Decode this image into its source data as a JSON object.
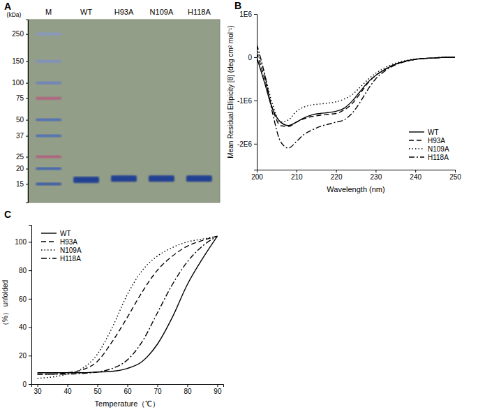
{
  "chart_data": [
    {
      "type": "gel",
      "title": "A",
      "y_label": "(kDa)",
      "categories": [
        "M",
        "WT",
        "H93A",
        "N109A",
        "H118A"
      ],
      "log": "y",
      "ylim": [
        10.6,
        328
      ],
      "yticks": [
        250,
        150,
        100,
        75,
        50,
        37,
        25,
        20,
        15
      ],
      "values": [
        [
          250,
          150,
          100,
          75,
          50,
          37,
          25,
          20,
          15
        ],
        [
          16.2
        ],
        [
          16.6
        ],
        [
          16.6
        ],
        [
          16.6
        ]
      ],
      "colors": [
        [
          "#8796c0",
          "#7f8fbf",
          "#6f82bd",
          "#b0607e",
          "#4f6fb5",
          "#4f6fb5",
          "#b0607e",
          "#4466b0",
          "#3a5aa8"
        ],
        [
          "#243f92"
        ],
        [
          "#243f92"
        ],
        [
          "#243f92"
        ],
        [
          "#243f92"
        ]
      ]
    },
    {
      "type": "line",
      "title": "B",
      "x_label": "Wavelength (nm)",
      "y_label": "Mean Residual Ellipicity [θ] (deg cm² mol⁻¹)",
      "x": [
        200,
        202,
        204,
        206,
        208,
        210,
        212,
        214,
        216,
        218,
        220,
        222,
        224,
        226,
        228,
        230,
        232,
        234,
        236,
        238,
        240,
        242,
        244,
        246,
        248,
        250
      ],
      "xlim": [
        200,
        250
      ],
      "xticks": [
        200,
        210,
        220,
        230,
        240,
        250
      ],
      "ylim": [
        -2600000,
        1000000
      ],
      "yticks": [
        {
          "value": 1000000,
          "label": "1E6"
        },
        0,
        {
          "value": -1000000,
          "label": "-1E6"
        },
        {
          "value": -2000000,
          "label": "-2E6"
        }
      ],
      "legend": "lower right",
      "series": [
        {
          "name": "WT",
          "color": "#000000",
          "line_style": "solid",
          "values": [
            0,
            -600000,
            -1200000,
            -1500000,
            -1580000,
            -1500000,
            -1400000,
            -1330000,
            -1300000,
            -1280000,
            -1250000,
            -1180000,
            -1020000,
            -800000,
            -580000,
            -420000,
            -300000,
            -200000,
            -130000,
            -80000,
            -50000,
            -30000,
            -20000,
            -10000,
            0,
            0
          ]
        },
        {
          "name": "H93A",
          "color": "#000000",
          "line_style": "dashed",
          "values": [
            100000,
            -500000,
            -1200000,
            -1580000,
            -1600000,
            -1500000,
            -1420000,
            -1370000,
            -1340000,
            -1320000,
            -1300000,
            -1220000,
            -1080000,
            -850000,
            -600000,
            -420000,
            -300000,
            -200000,
            -130000,
            -80000,
            -50000,
            -30000,
            -20000,
            -10000,
            0,
            0
          ]
        },
        {
          "name": "N109A",
          "color": "#000000",
          "line_style": "dotted",
          "values": [
            200000,
            -400000,
            -1100000,
            -1500000,
            -1450000,
            -1250000,
            -1150000,
            -1100000,
            -1080000,
            -1060000,
            -1030000,
            -970000,
            -870000,
            -700000,
            -520000,
            -370000,
            -260000,
            -170000,
            -110000,
            -70000,
            -40000,
            -30000,
            -20000,
            -10000,
            0,
            0
          ]
        },
        {
          "name": "H118A",
          "color": "#000000",
          "line_style": "dash-dot",
          "values": [
            300000,
            -400000,
            -1300000,
            -1950000,
            -2100000,
            -1950000,
            -1780000,
            -1680000,
            -1600000,
            -1550000,
            -1500000,
            -1450000,
            -1300000,
            -1050000,
            -750000,
            -500000,
            -340000,
            -220000,
            -140000,
            -90000,
            -50000,
            -30000,
            -20000,
            -10000,
            0,
            0
          ]
        }
      ]
    },
    {
      "type": "line",
      "title": "C",
      "x_label": "Temperature（℃）",
      "y_label": "（%） unfolded",
      "x": [
        30,
        35,
        40,
        45,
        50,
        55,
        60,
        65,
        70,
        75,
        80,
        85,
        90
      ],
      "xlim": [
        28,
        92
      ],
      "xticks": [
        30,
        40,
        50,
        60,
        70,
        80,
        90
      ],
      "ylim": [
        0,
        112
      ],
      "yticks": [
        0,
        20,
        40,
        60,
        80,
        100
      ],
      "legend": "upper left",
      "series": [
        {
          "name": "WT",
          "color": "#000000",
          "line_style": "solid",
          "values": [
            8,
            8,
            8,
            8,
            8.5,
            9,
            11,
            16,
            28,
            47,
            70,
            88,
            104
          ]
        },
        {
          "name": "H93A",
          "color": "#000000",
          "line_style": "dashed",
          "values": [
            7,
            7,
            8,
            10,
            16,
            30,
            47,
            65,
            80,
            90,
            97,
            101,
            104
          ]
        },
        {
          "name": "N109A",
          "color": "#000000",
          "line_style": "dotted",
          "values": [
            4,
            5,
            7,
            11,
            21,
            40,
            63,
            80,
            90,
            96,
            100,
            102,
            104
          ]
        },
        {
          "name": "H118A",
          "color": "#000000",
          "line_style": "dash-dot",
          "values": [
            7,
            7,
            7,
            7.5,
            8.5,
            11,
            17,
            30,
            50,
            70,
            86,
            97,
            104
          ]
        }
      ]
    }
  ]
}
